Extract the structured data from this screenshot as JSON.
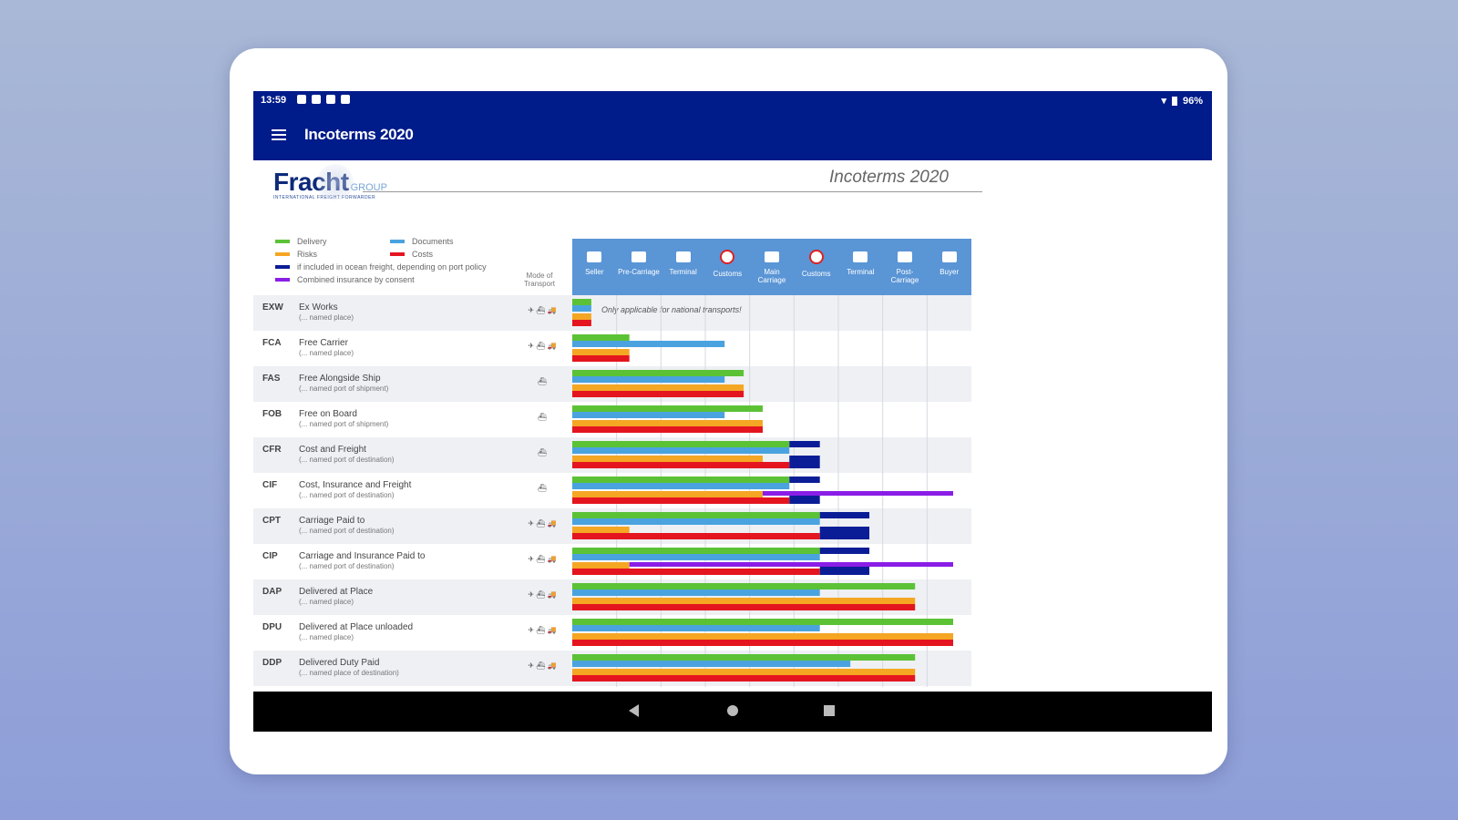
{
  "status_bar": {
    "time": "13:59",
    "battery": "96%"
  },
  "app_bar": {
    "title": "Incoterms 2020"
  },
  "logo": {
    "word": "Fracht",
    "group": "GROUP",
    "sub": "INTERNATIONAL FREIGHT FORWARDER"
  },
  "document": {
    "title": "Incoterms 2020"
  },
  "legend": [
    {
      "label": "Delivery",
      "color": "#5bc236"
    },
    {
      "label": "Documents",
      "color": "#4aa3df"
    },
    {
      "label": "Risks",
      "color": "#f5a623"
    },
    {
      "label": "Costs",
      "color": "#e4151f"
    },
    {
      "label": "if included in ocean freight, depending on port policy",
      "color": "#0b1d96"
    },
    {
      "label": "Combined insurance by consent",
      "color": "#8a1de6"
    }
  ],
  "mode_header": "Mode of Transport",
  "stages": [
    {
      "label": "Seller",
      "icon": "factory-icon"
    },
    {
      "label": "Pre-Carriage",
      "icon": "truck-icon"
    },
    {
      "label": "Terminal",
      "icon": "terminal-icon"
    },
    {
      "label": "Customs",
      "icon": "customs-icon"
    },
    {
      "label": "Main Carriage",
      "icon": "ship-plane-icon"
    },
    {
      "label": "Customs",
      "icon": "customs-icon"
    },
    {
      "label": "Terminal",
      "icon": "terminal-icon"
    },
    {
      "label": "Post-Carriage",
      "icon": "truck-icon"
    },
    {
      "label": "Buyer",
      "icon": "buyer-icon"
    }
  ],
  "terms": [
    {
      "code": "EXW",
      "name": "Ex Works",
      "sub": "(... named place)",
      "mode": "✈ ⛴ 🚚",
      "note": "Only applicable for national transports!",
      "delivery": 0.05,
      "documents": 0.05,
      "risks": 0.05,
      "costs": 0.05,
      "extra": 0,
      "insurance": 0
    },
    {
      "code": "FCA",
      "name": "Free Carrier",
      "sub": "(... named place)",
      "mode": "✈ ⛴ 🚚",
      "note": "",
      "delivery": 0.15,
      "documents": 0.4,
      "risks": 0.15,
      "costs": 0.15,
      "extra": 0,
      "insurance": 0
    },
    {
      "code": "FAS",
      "name": "Free Alongside Ship",
      "sub": "(... named port of shipment)",
      "mode": "⛴",
      "note": "",
      "delivery": 0.45,
      "documents": 0.4,
      "risks": 0.45,
      "costs": 0.45,
      "extra": 0,
      "insurance": 0
    },
    {
      "code": "FOB",
      "name": "Free on Board",
      "sub": "(... named port of shipment)",
      "mode": "⛴",
      "note": "",
      "delivery": 0.5,
      "documents": 0.4,
      "risks": 0.5,
      "costs": 0.5,
      "extra": 0,
      "insurance": 0
    },
    {
      "code": "CFR",
      "name": "Cost and Freight",
      "sub": "(... named port of destination)",
      "mode": "⛴",
      "note": "",
      "delivery": 0.57,
      "documents": 0.57,
      "risks": 0.5,
      "costs": 0.57,
      "extra": 0.65,
      "insurance": 0
    },
    {
      "code": "CIF",
      "name": "Cost, Insurance and Freight",
      "sub": "(... named port of destination)",
      "mode": "⛴",
      "note": "",
      "delivery": 0.57,
      "documents": 0.57,
      "risks": 0.5,
      "costs": 0.57,
      "extra": 0.65,
      "insurance": 1.0
    },
    {
      "code": "CPT",
      "name": "Carriage Paid to",
      "sub": "(... named port of destination)",
      "mode": "✈ ⛴ 🚚",
      "note": "",
      "delivery": 0.65,
      "documents": 0.65,
      "risks": 0.15,
      "costs": 0.65,
      "extra": 0.78,
      "insurance": 0
    },
    {
      "code": "CIP",
      "name": "Carriage and Insurance Paid to",
      "sub": "(... named port of destination)",
      "mode": "✈ ⛴ 🚚",
      "note": "",
      "delivery": 0.65,
      "documents": 0.65,
      "risks": 0.15,
      "costs": 0.65,
      "extra": 0.78,
      "insurance": 1.0
    },
    {
      "code": "DAP",
      "name": "Delivered at Place",
      "sub": "(... named place)",
      "mode": "✈ ⛴ 🚚",
      "note": "",
      "delivery": 0.9,
      "documents": 0.65,
      "risks": 0.9,
      "costs": 0.9,
      "extra": 0,
      "insurance": 0
    },
    {
      "code": "DPU",
      "name": "Delivered at Place unloaded",
      "sub": "(... named place)",
      "mode": "✈ ⛴ 🚚",
      "note": "",
      "delivery": 1.0,
      "documents": 0.65,
      "risks": 1.0,
      "costs": 1.0,
      "extra": 0,
      "insurance": 0
    },
    {
      "code": "DDP",
      "name": "Delivered Duty Paid",
      "sub": "(... named place of destination)",
      "mode": "✈ ⛴ 🚚",
      "note": "",
      "delivery": 0.9,
      "documents": 0.73,
      "risks": 0.9,
      "costs": 0.9,
      "extra": 0,
      "insurance": 0
    }
  ]
}
